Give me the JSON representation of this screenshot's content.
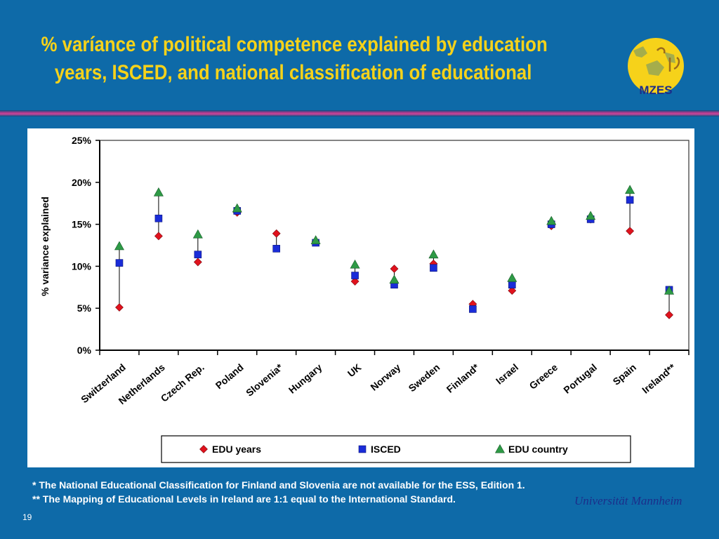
{
  "slide": {
    "title_line1": "% varíance of political competence explained by education",
    "title_line2": "years, ISCED, and national classification of educational",
    "logo_text": "MZES",
    "footnote1": "* The National Educational Classification for Finland and Slovenia are not available for the ESS, Edition 1.",
    "footnote2": "** The Mapping of Educational Levels in Ireland are 1:1 equal to the International Standard.",
    "university": "Universität Mannheim",
    "page_number": "19"
  },
  "colors": {
    "background": "#0e6aa8",
    "title": "#f6d21a",
    "edu_years": "#e0121d",
    "isced": "#1a2cd8",
    "edu_country": "#2e9a46"
  },
  "chart_data": {
    "type": "scatter",
    "ylabel": "% variance explained",
    "xlabel": "",
    "ylim": [
      0,
      25
    ],
    "yticks": [
      "0%",
      "5%",
      "10%",
      "15%",
      "20%",
      "25%"
    ],
    "grid": false,
    "legend_position": "bottom",
    "categories": [
      "Switzerland",
      "Netherlands",
      "Czech Rep.",
      "Poland",
      "Slovenia*",
      "Hungary",
      "UK",
      "Norway",
      "Sweden",
      "Finland*",
      "Israel",
      "Greece",
      "Portugal",
      "Spain",
      "Ireland**"
    ],
    "series": [
      {
        "name": "EDU years",
        "marker": "diamond",
        "values": [
          5.1,
          13.6,
          10.5,
          16.4,
          13.9,
          12.9,
          8.2,
          9.7,
          10.3,
          5.5,
          7.1,
          14.8,
          15.6,
          14.2,
          4.2
        ]
      },
      {
        "name": "ISCED",
        "marker": "square",
        "values": [
          10.4,
          15.7,
          11.4,
          16.6,
          12.1,
          12.8,
          8.9,
          7.8,
          9.8,
          4.9,
          7.8,
          15.0,
          15.6,
          17.9,
          7.2
        ]
      },
      {
        "name": "EDU country",
        "marker": "triangle",
        "values": [
          12.4,
          18.8,
          13.8,
          16.9,
          null,
          13.1,
          10.2,
          8.4,
          11.4,
          null,
          8.6,
          15.4,
          16.0,
          19.1,
          7.1
        ]
      }
    ]
  }
}
